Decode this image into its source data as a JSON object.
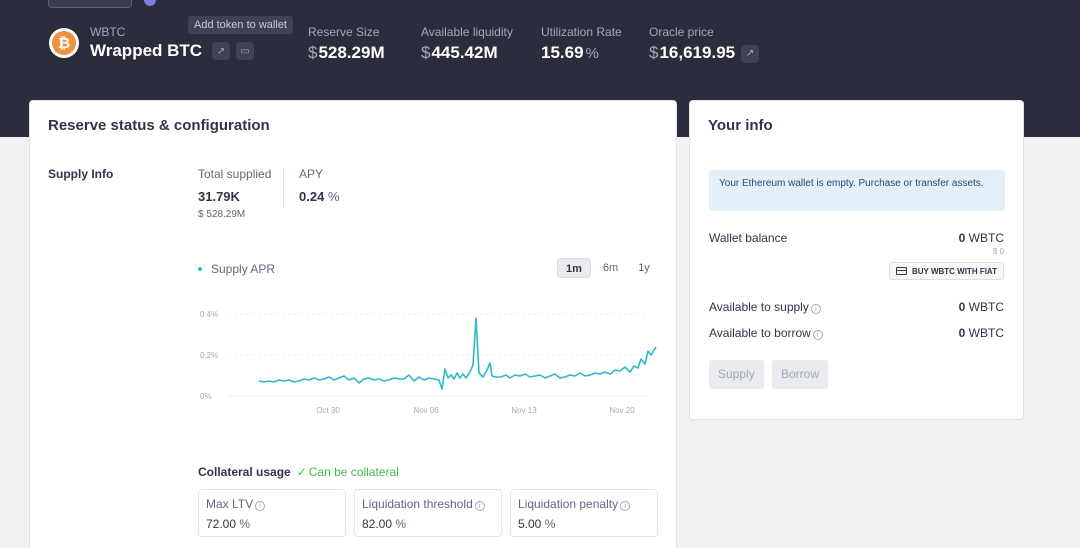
{
  "header": {
    "asset_symbol": "WBTC",
    "asset_name": "Wrapped BTC",
    "asset_icon": "bitcoin-icon",
    "tooltip": "Add token to wallet",
    "stats": {
      "reserve_size": {
        "label": "Reserve Size",
        "currency": "$",
        "value": "528.29M"
      },
      "available_liquidity": {
        "label": "Available liquidity",
        "currency": "$",
        "value": "445.42M"
      },
      "utilization_rate": {
        "label": "Utilization Rate",
        "value": "15.69",
        "unit": "%"
      },
      "oracle_price": {
        "label": "Oracle price",
        "currency": "$",
        "value": "16,619.95"
      }
    }
  },
  "reserve": {
    "title": "Reserve status & configuration",
    "supply_info_label": "Supply Info",
    "total_supplied": {
      "label": "Total supplied",
      "value": "31.79K",
      "usd": "$ 528.29M"
    },
    "apy": {
      "label": "APY",
      "value": "0.24",
      "unit": "%"
    },
    "chart": {
      "legend": "Supply APR",
      "ranges": [
        "1m",
        "6m",
        "1y"
      ],
      "active_range": "1m",
      "y_ticks": [
        "0.4%",
        "0.2%",
        "0%"
      ],
      "x_ticks": [
        "Oct 30",
        "Nov 06",
        "Nov 13",
        "Nov 20"
      ],
      "line_color": "#2ebac6"
    },
    "collateral": {
      "label": "Collateral usage",
      "status": "Can be collateral",
      "max_ltv": {
        "label": "Max LTV",
        "value": "72.00",
        "unit": "%"
      },
      "liquidation_threshold": {
        "label": "Liquidation threshold",
        "value": "82.00",
        "unit": "%"
      },
      "liquidation_penalty": {
        "label": "Liquidation penalty",
        "value": "5.00",
        "unit": "%"
      }
    }
  },
  "your_info": {
    "title": "Your info",
    "notice": "Your Ethereum wallet is empty. Purchase or transfer assets.",
    "wallet_balance": {
      "label": "Wallet balance",
      "value": "0",
      "unit": "WBTC",
      "usd": "$ 0"
    },
    "buy_button": "BUY WBTC WITH FIAT",
    "available_to_supply": {
      "label": "Available to supply",
      "value": "0",
      "unit": "WBTC"
    },
    "available_to_borrow": {
      "label": "Available to borrow",
      "value": "0",
      "unit": "WBTC"
    },
    "supply_button": "Supply",
    "borrow_button": "Borrow"
  },
  "colors": {
    "header_bg": "#2b2d3c",
    "accent_teal": "#2ebac6",
    "success_green": "#46bc4b",
    "notice_bg": "#e5eff8"
  }
}
